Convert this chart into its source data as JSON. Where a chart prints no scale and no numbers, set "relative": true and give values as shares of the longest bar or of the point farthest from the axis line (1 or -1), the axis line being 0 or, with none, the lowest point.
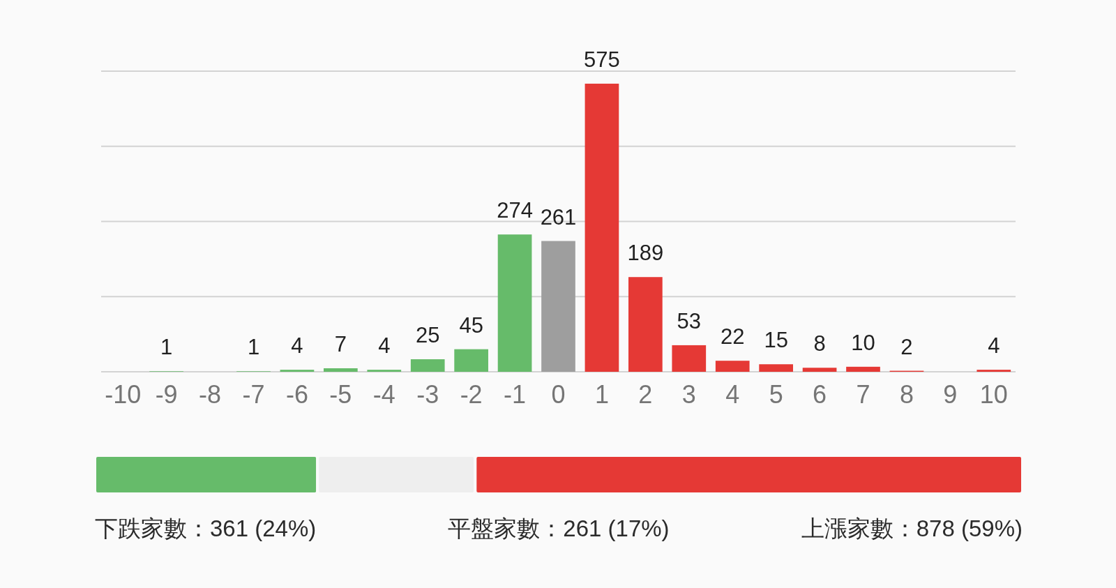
{
  "chart_data": [
    {
      "type": "bar",
      "categories": [
        "-10",
        "-9",
        "-8",
        "-7",
        "-6",
        "-5",
        "-4",
        "-3",
        "-2",
        "-1",
        "0",
        "1",
        "2",
        "3",
        "4",
        "5",
        "6",
        "7",
        "8",
        "9",
        "10"
      ],
      "values": [
        0,
        1,
        0,
        1,
        4,
        7,
        4,
        25,
        45,
        274,
        261,
        575,
        189,
        53,
        22,
        15,
        8,
        10,
        2,
        0,
        4
      ],
      "colors": [
        "#66bb6a",
        "#66bb6a",
        "#66bb6a",
        "#66bb6a",
        "#66bb6a",
        "#66bb6a",
        "#66bb6a",
        "#66bb6a",
        "#66bb6a",
        "#66bb6a",
        "#9e9e9e",
        "#e53935",
        "#e53935",
        "#e53935",
        "#e53935",
        "#e53935",
        "#e53935",
        "#e53935",
        "#e53935",
        "#e53935",
        "#e53935"
      ],
      "value_labels": [
        null,
        "1",
        null,
        "1",
        "4",
        "7",
        "4",
        "25",
        "45",
        "274",
        "261",
        "575",
        "189",
        "53",
        "22",
        "15",
        "8",
        "10",
        "2",
        null,
        "4"
      ],
      "ylim": [
        0,
        600
      ],
      "yticks": [
        {
          "value": 0,
          "label": null
        },
        {
          "value": 150,
          "label": null
        },
        {
          "value": 300,
          "label": null
        },
        {
          "value": 450,
          "label": null
        },
        {
          "value": 600,
          "label": null
        }
      ],
      "grid": "y",
      "tick_labels": "x"
    },
    {
      "type": "bar",
      "orientation": "horizontal",
      "stacked": true,
      "relative": true,
      "categories": [
        null
      ],
      "series": [
        {
          "color": "#66bb6a",
          "values": [
            0.24
          ]
        },
        {
          "color": "#eeeeee",
          "values": [
            0.17
          ]
        },
        {
          "color": "#e53935",
          "values": [
            0.59
          ]
        }
      ],
      "annotations": [
        "下跌家數：361 (24%)",
        "平盤家數：261 (17%)",
        "上漲家數：878 (59%)"
      ]
    }
  ]
}
